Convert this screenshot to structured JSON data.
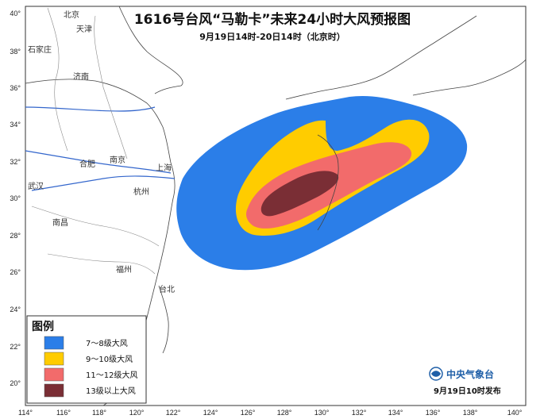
{
  "header": {
    "title": "1616号台风“马勒卡”未来24小时大风预报图",
    "subtitle": "9月19日14时-20日14时（北京时）"
  },
  "axes": {
    "x_ticks": [
      "114°",
      "116°",
      "118°",
      "120°",
      "122°",
      "124°",
      "126°",
      "128°",
      "130°",
      "132°",
      "134°",
      "136°",
      "138°",
      "140°"
    ],
    "y_ticks": [
      "40°",
      "38°",
      "36°",
      "34°",
      "32°",
      "30°",
      "28°",
      "26°",
      "24°",
      "22°",
      "20°"
    ]
  },
  "cities": [
    {
      "name": "北京"
    },
    {
      "name": "天津"
    },
    {
      "name": "石家庄"
    },
    {
      "name": "济南"
    },
    {
      "name": "合肥"
    },
    {
      "name": "南京"
    },
    {
      "name": "上海"
    },
    {
      "name": "武汉"
    },
    {
      "name": "杭州"
    },
    {
      "name": "南昌"
    },
    {
      "name": "福州"
    },
    {
      "name": "台北"
    }
  ],
  "legend": {
    "title": "图例",
    "items": [
      {
        "label": "7～8级大风",
        "color": "#2b7ee8"
      },
      {
        "label": "9～10级大风",
        "color": "#ffcc00"
      },
      {
        "label": "11～12级大风",
        "color": "#f26b6b"
      },
      {
        "label": "13级以上大风",
        "color": "#7a2e35"
      }
    ]
  },
  "footer": {
    "agency": "中央气象台",
    "publish_time": "9月19日10时发布"
  }
}
